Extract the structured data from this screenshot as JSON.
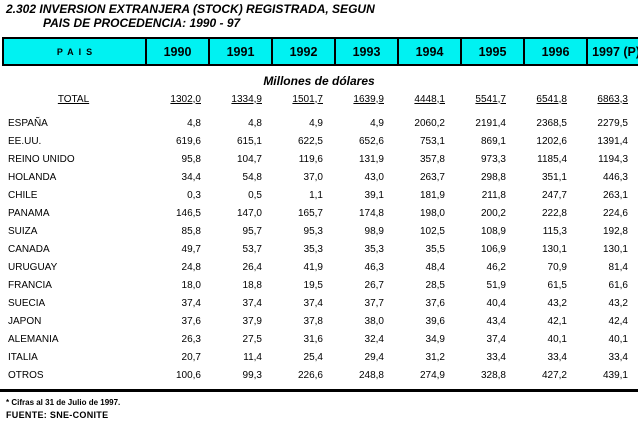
{
  "page": {
    "title_line1": "2.302 INVERSION EXTRANJERA (STOCK) REGISTRADA, SEGUN",
    "title_line2": "PAIS DE PROCEDENCIA: 1990 - 97",
    "units_label": "Millones de dólares",
    "footnote": "* Cifras al 31 de Julio de 1997.",
    "source": "FUENTE: SNE-CONITE"
  },
  "colors": {
    "header_bg": "#00f2f2",
    "border": "#000000",
    "text": "#000000"
  },
  "table": {
    "columns": [
      "PAIS",
      "1990",
      "1991",
      "1992",
      "1993",
      "1994",
      "1995",
      "1996",
      "1997 (P)*"
    ],
    "total_row": {
      "label": "TOTAL",
      "values": [
        "1302,0",
        "1334,9",
        "1501,7",
        "1639,9",
        "4448,1",
        "5541,7",
        "6541,8",
        "6863,3"
      ]
    },
    "rows": [
      {
        "label": "ESPAÑA",
        "values": [
          "4,8",
          "4,8",
          "4,9",
          "4,9",
          "2060,2",
          "2191,4",
          "2368,5",
          "2279,5"
        ]
      },
      {
        "label": "EE.UU.",
        "values": [
          "619,6",
          "615,1",
          "622,5",
          "652,6",
          "753,1",
          "869,1",
          "1202,6",
          "1391,4"
        ]
      },
      {
        "label": "REINO UNIDO",
        "values": [
          "95,8",
          "104,7",
          "119,6",
          "131,9",
          "357,8",
          "973,3",
          "1185,4",
          "1194,3"
        ]
      },
      {
        "label": "HOLANDA",
        "values": [
          "34,4",
          "54,8",
          "37,0",
          "43,0",
          "263,7",
          "298,8",
          "351,1",
          "446,3"
        ]
      },
      {
        "label": "CHILE",
        "values": [
          "0,3",
          "0,5",
          "1,1",
          "39,1",
          "181,9",
          "211,8",
          "247,7",
          "263,1"
        ]
      },
      {
        "label": "PANAMA",
        "values": [
          "146,5",
          "147,0",
          "165,7",
          "174,8",
          "198,0",
          "200,2",
          "222,8",
          "224,6"
        ]
      },
      {
        "label": "SUIZA",
        "values": [
          "85,8",
          "95,7",
          "95,3",
          "98,9",
          "102,5",
          "108,9",
          "115,3",
          "192,8"
        ]
      },
      {
        "label": "CANADA",
        "values": [
          "49,7",
          "53,7",
          "35,3",
          "35,3",
          "35,5",
          "106,9",
          "130,1",
          "130,1"
        ]
      },
      {
        "label": "URUGUAY",
        "values": [
          "24,8",
          "26,4",
          "41,9",
          "46,3",
          "48,4",
          "46,2",
          "70,9",
          "81,4"
        ]
      },
      {
        "label": "FRANCIA",
        "values": [
          "18,0",
          "18,8",
          "19,5",
          "26,7",
          "28,5",
          "51,9",
          "61,5",
          "61,6"
        ]
      },
      {
        "label": "SUECIA",
        "values": [
          "37,4",
          "37,4",
          "37,4",
          "37,7",
          "37,6",
          "40,4",
          "43,2",
          "43,2"
        ]
      },
      {
        "label": "JAPON",
        "values": [
          "37,6",
          "37,9",
          "37,8",
          "38,0",
          "39,6",
          "43,4",
          "42,1",
          "42,4"
        ]
      },
      {
        "label": "ALEMANIA",
        "values": [
          "26,3",
          "27,5",
          "31,6",
          "32,4",
          "34,9",
          "37,4",
          "40,1",
          "40,1"
        ]
      },
      {
        "label": "ITALIA",
        "values": [
          "20,7",
          "11,4",
          "25,4",
          "29,4",
          "31,2",
          "33,4",
          "33,4",
          "33,4"
        ]
      },
      {
        "label": "OTROS",
        "values": [
          "100,6",
          "99,3",
          "226,6",
          "248,8",
          "274,9",
          "328,8",
          "427,2",
          "439,1"
        ]
      }
    ]
  }
}
